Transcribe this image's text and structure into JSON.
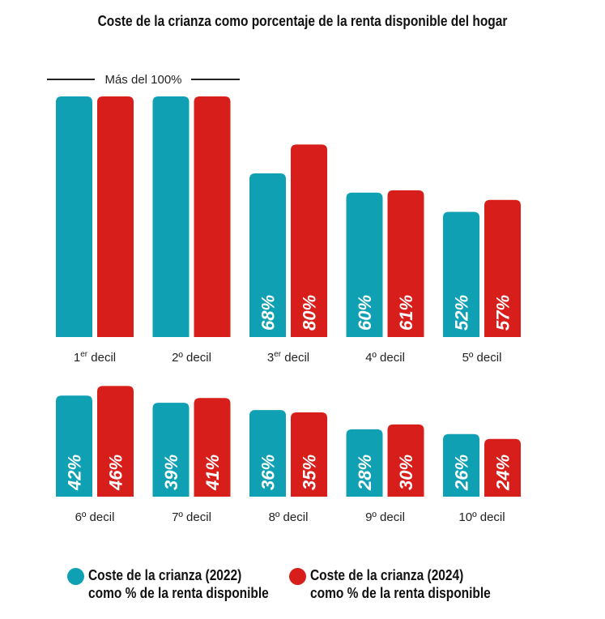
{
  "title": "Coste de la crianza como porcentaje de la renta disponible del hogar",
  "chart_data": {
    "type": "bar",
    "title": "Coste de la crianza como porcentaje de la renta disponible del hogar",
    "categories": [
      {
        "num": "1",
        "sup": "er",
        "rest": " decil"
      },
      {
        "num": "2º",
        "sup": "",
        "rest": " decil"
      },
      {
        "num": "3",
        "sup": "er",
        "rest": " decil"
      },
      {
        "num": "4º",
        "sup": "",
        "rest": " decil"
      },
      {
        "num": "5º",
        "sup": "",
        "rest": " decil"
      },
      {
        "num": "6º",
        "sup": "",
        "rest": " decil"
      },
      {
        "num": "7º",
        "sup": "",
        "rest": " decil"
      },
      {
        "num": "8º",
        "sup": "",
        "rest": " decil"
      },
      {
        "num": "9º",
        "sup": "",
        "rest": " decil"
      },
      {
        "num": "10º",
        "sup": "",
        "rest": " decil"
      }
    ],
    "series": [
      {
        "name": "Coste de la crianza (2022) como % de la renta disponible",
        "color": "#0fa0b4",
        "values": [
          null,
          null,
          68,
          60,
          52,
          42,
          39,
          36,
          28,
          26
        ]
      },
      {
        "name": "Coste de la crianza (2024) como % de la renta disponible",
        "color": "#d81e1a",
        "values": [
          null,
          null,
          80,
          61,
          57,
          46,
          41,
          35,
          30,
          24
        ]
      }
    ],
    "overflow_label": "Más del 100%",
    "value_suffix": "%",
    "ylim": [
      0,
      100
    ],
    "grid": false,
    "legend_position": "bottom"
  },
  "legend": [
    {
      "line1": "Coste de la crianza (2022)",
      "line2": "como % de la renta disponible"
    },
    {
      "line1": "Coste de la crianza (2024)",
      "line2": "como % de la renta disponible"
    }
  ]
}
